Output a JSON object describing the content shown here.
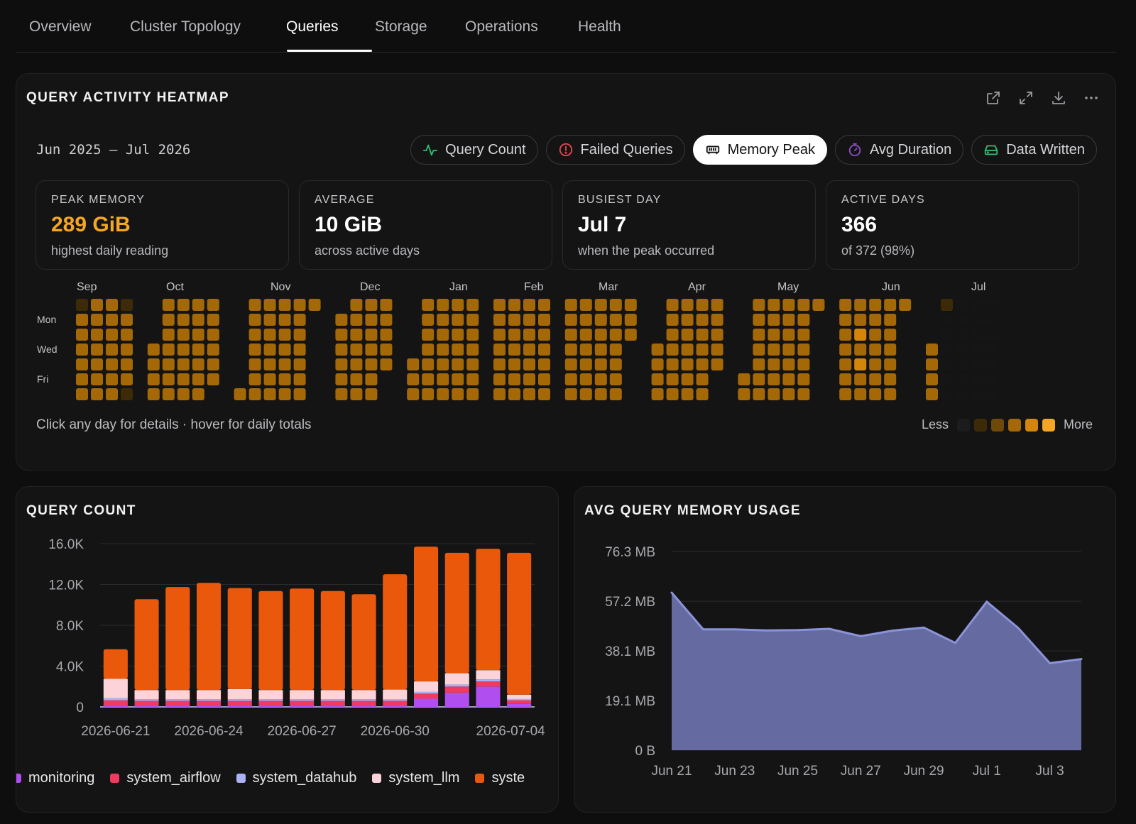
{
  "tabs": [
    {
      "label": "Overview"
    },
    {
      "label": "Cluster Topology"
    },
    {
      "label": "Queries"
    },
    {
      "label": "Storage"
    },
    {
      "label": "Operations"
    },
    {
      "label": "Health"
    }
  ],
  "active_tab": "Queries",
  "heatmap": {
    "title": "QUERY ACTIVITY HEATMAP",
    "date_range": "Jun 2025 — Jul 2026",
    "toolbar_icons": [
      "open-external-icon",
      "expand-icon",
      "download-icon",
      "more-icon"
    ],
    "metrics": [
      {
        "label": "Query Count",
        "icon": "activity-icon",
        "color": "#2fbf71"
      },
      {
        "label": "Failed Queries",
        "icon": "alert-circle-icon",
        "color": "#e5484d"
      },
      {
        "label": "Memory Peak",
        "icon": "memory-icon",
        "color": "#111111",
        "active": true
      },
      {
        "label": "Avg Duration",
        "icon": "timer-icon",
        "color": "#8e4ec6"
      },
      {
        "label": "Data Written",
        "icon": "hard-drive-icon",
        "color": "#2fbf71"
      }
    ],
    "stats": [
      {
        "label": "PEAK MEMORY",
        "value": "289 GiB",
        "sub": "highest daily reading",
        "accent": true
      },
      {
        "label": "AVERAGE",
        "value": "10 GiB",
        "sub": "across active days"
      },
      {
        "label": "BUSIEST DAY",
        "value": "Jul 7",
        "sub": "when the peak occurred"
      },
      {
        "label": "ACTIVE DAYS",
        "value": "366",
        "sub": "of 372 (98%)"
      }
    ],
    "months": [
      "Sep",
      "Oct",
      "Nov",
      "Dec",
      "Jan",
      "Feb",
      "Mar",
      "Apr",
      "May",
      "Jun",
      "Jul"
    ],
    "weekday_labels": [
      "Mon",
      "Wed",
      "Fri"
    ],
    "hint": "Click any day for details · hover for daily totals",
    "legend_less": "Less",
    "legend_more": "More",
    "scale_colors": [
      "#1c1c1d",
      "#3d2b07",
      "#6e4a06",
      "#a46807",
      "#d4860b",
      "#f5a623"
    ]
  },
  "query_count": {
    "title": "QUERY COUNT",
    "legend": [
      {
        "name": "monitoring",
        "color": "#b04ef0"
      },
      {
        "name": "system_airflow",
        "color": "#f03a5f"
      },
      {
        "name": "system_datahub",
        "color": "#a9b3f5"
      },
      {
        "name": "system_llm",
        "color": "#fcd3d8"
      },
      {
        "name": "syste",
        "color": "#ea580c"
      }
    ]
  },
  "memory_usage": {
    "title": "AVG QUERY MEMORY USAGE"
  },
  "chart_data": [
    {
      "type": "bar",
      "stacked": true,
      "title": "QUERY COUNT",
      "x_tick_labels": [
        "2026-06-21",
        "2026-06-24",
        "2026-06-27",
        "2026-06-30",
        "2026-07-04"
      ],
      "y_tick_labels": [
        "0",
        "4.0K",
        "8.0K",
        "12.0K",
        "16.0K"
      ],
      "ylim": [
        0,
        16000
      ],
      "grid": true,
      "legend_position": "bottom",
      "categories": [
        "2026-06-21",
        "2026-06-22",
        "2026-06-23",
        "2026-06-24",
        "2026-06-25",
        "2026-06-26",
        "2026-06-27",
        "2026-06-28",
        "2026-06-29",
        "2026-06-30",
        "2026-07-01",
        "2026-07-02",
        "2026-07-03",
        "2026-07-04"
      ],
      "series": [
        {
          "name": "monitoring",
          "color": "#b04ef0",
          "values": [
            150,
            150,
            150,
            150,
            150,
            150,
            150,
            150,
            150,
            150,
            800,
            1400,
            2000,
            300
          ]
        },
        {
          "name": "system_airflow",
          "color": "#f03a5f",
          "values": [
            500,
            450,
            450,
            450,
            450,
            450,
            450,
            450,
            450,
            450,
            500,
            600,
            500,
            350
          ]
        },
        {
          "name": "system_datahub",
          "color": "#a9b3f5",
          "values": [
            200,
            150,
            150,
            150,
            150,
            150,
            150,
            150,
            150,
            150,
            200,
            200,
            200,
            150
          ]
        },
        {
          "name": "system_llm",
          "color": "#fcd3d8",
          "values": [
            1900,
            900,
            900,
            900,
            1000,
            900,
            900,
            900,
            900,
            950,
            1000,
            1100,
            900,
            400
          ]
        },
        {
          "name": "syste",
          "color": "#ea580c",
          "values": [
            2900,
            8900,
            10100,
            10500,
            9900,
            9700,
            9950,
            9700,
            9400,
            11300,
            13200,
            11800,
            11900,
            13900
          ]
        }
      ]
    },
    {
      "type": "area",
      "title": "AVG QUERY MEMORY USAGE",
      "x_tick_labels": [
        "Jun 21",
        "Jun 23",
        "Jun 25",
        "Jun 27",
        "Jun 29",
        "Jul 1",
        "Jul 3"
      ],
      "y_tick_labels": [
        "0 B",
        "19.1 MB",
        "38.1 MB",
        "57.2 MB",
        "76.3 MB"
      ],
      "ylim": [
        0,
        76.3
      ],
      "grid": true,
      "color": "#8b93d9",
      "series": [
        {
          "x": [
            "Jun 21",
            "Jun 22",
            "Jun 23",
            "Jun 24",
            "Jun 25",
            "Jun 26",
            "Jun 27",
            "Jun 28",
            "Jun 29",
            "Jun 30",
            "Jul 1",
            "Jul 2",
            "Jul 3",
            "Jul 4"
          ],
          "values": [
            60.5,
            46.4,
            46.4,
            46.0,
            46.1,
            46.6,
            43.8,
            45.9,
            47.1,
            41.2,
            57.0,
            46.9,
            33.4,
            35.0
          ]
        }
      ]
    },
    {
      "type": "heatmap",
      "title": "QUERY ACTIVITY HEATMAP",
      "metric": "Memory Peak",
      "range": "Jun 2025 — Jul 2026",
      "levels_by_week": [
        [
          1,
          3,
          3,
          3,
          3,
          3,
          3
        ],
        [
          3,
          3,
          3,
          3,
          3,
          3,
          3
        ],
        [
          3,
          3,
          3,
          3,
          3,
          3,
          3
        ],
        [
          1,
          3,
          3,
          3,
          3,
          3,
          1
        ],
        [
          0,
          0,
          0,
          3,
          3,
          3,
          3
        ],
        [
          3,
          3,
          3,
          3,
          3,
          3,
          3
        ],
        [
          3,
          3,
          3,
          3,
          3,
          3,
          3
        ],
        [
          3,
          3,
          3,
          3,
          3,
          3,
          3
        ],
        [
          3,
          3,
          3,
          3,
          3,
          3,
          0
        ],
        [
          0,
          0,
          0,
          0,
          0,
          0,
          3
        ],
        [
          3,
          3,
          3,
          3,
          3,
          3,
          3
        ],
        [
          3,
          3,
          3,
          3,
          3,
          3,
          3
        ],
        [
          3,
          3,
          3,
          3,
          3,
          3,
          3
        ],
        [
          3,
          3,
          3,
          3,
          3,
          3,
          3
        ],
        [
          3,
          0,
          0,
          0,
          0,
          0,
          0
        ],
        [
          0,
          3,
          3,
          3,
          3,
          3,
          3
        ],
        [
          3,
          3,
          3,
          3,
          3,
          3,
          3
        ],
        [
          3,
          3,
          3,
          3,
          3,
          3,
          3
        ],
        [
          3,
          3,
          3,
          3,
          3,
          0,
          0
        ],
        [
          0,
          0,
          0,
          0,
          3,
          3,
          3
        ],
        [
          3,
          3,
          3,
          3,
          3,
          3,
          3
        ],
        [
          3,
          3,
          3,
          3,
          3,
          3,
          3
        ],
        [
          3,
          3,
          3,
          3,
          3,
          3,
          3
        ],
        [
          3,
          3,
          3,
          3,
          3,
          3,
          3
        ],
        [
          3,
          3,
          3,
          3,
          3,
          3,
          3
        ],
        [
          3,
          3,
          3,
          3,
          3,
          3,
          3
        ],
        [
          3,
          3,
          3,
          3,
          3,
          3,
          3
        ],
        [
          3,
          3,
          3,
          3,
          3,
          3,
          3
        ],
        [
          3,
          3,
          3,
          3,
          3,
          3,
          3
        ],
        [
          3,
          3,
          3,
          3,
          3,
          3,
          3
        ],
        [
          3,
          3,
          3,
          3,
          3,
          3,
          3
        ],
        [
          3,
          3,
          3,
          3,
          3,
          3,
          3
        ],
        [
          3,
          3,
          3,
          0,
          0,
          0,
          0
        ],
        [
          0,
          0,
          0,
          3,
          3,
          3,
          3
        ],
        [
          3,
          3,
          3,
          3,
          3,
          3,
          3
        ],
        [
          3,
          3,
          3,
          3,
          3,
          3,
          3
        ],
        [
          3,
          3,
          3,
          3,
          3,
          3,
          3
        ],
        [
          3,
          3,
          3,
          3,
          3,
          0,
          0
        ],
        [
          0,
          0,
          0,
          0,
          0,
          3,
          3
        ],
        [
          3,
          3,
          3,
          3,
          3,
          3,
          3
        ],
        [
          3,
          3,
          3,
          3,
          3,
          3,
          3
        ],
        [
          3,
          3,
          3,
          3,
          3,
          3,
          3
        ],
        [
          3,
          3,
          3,
          3,
          3,
          3,
          3
        ],
        [
          3,
          0,
          0,
          0,
          0,
          0,
          0
        ],
        [
          3,
          3,
          3,
          3,
          3,
          3,
          3
        ],
        [
          3,
          3,
          4,
          3,
          4,
          3,
          3
        ],
        [
          3,
          3,
          3,
          3,
          3,
          3,
          3
        ],
        [
          3,
          3,
          3,
          3,
          3,
          3,
          3
        ],
        [
          3,
          0,
          0,
          0,
          0,
          0,
          0
        ],
        [
          0,
          0,
          0,
          3,
          3,
          3,
          3
        ],
        [
          1,
          0,
          0,
          0,
          0,
          0,
          0
        ],
        [
          0,
          0,
          0,
          0,
          0,
          0,
          0
        ],
        [
          0,
          0,
          0,
          0,
          0,
          0,
          0
        ],
        [
          0,
          0,
          0,
          0,
          0,
          0,
          0
        ]
      ]
    }
  ]
}
